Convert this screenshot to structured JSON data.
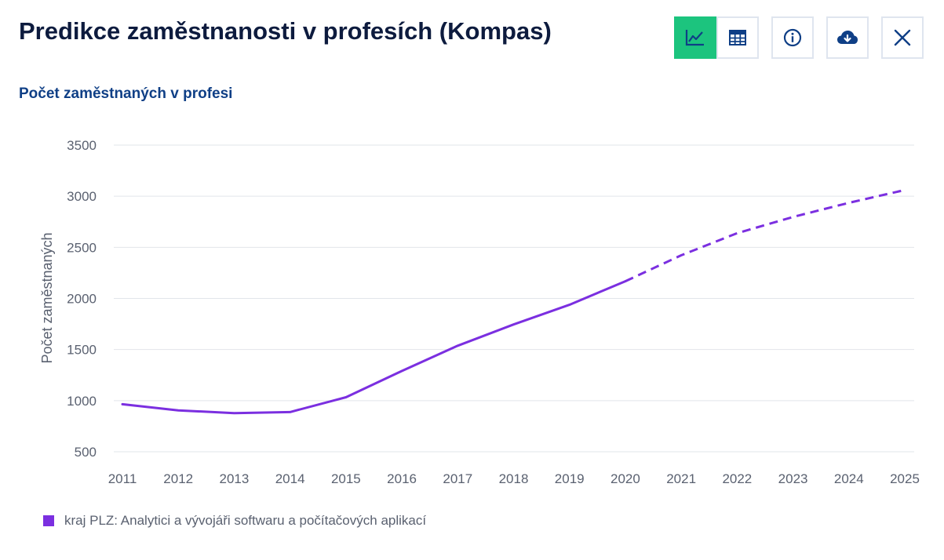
{
  "header": {
    "title": "Predikce zaměstnanosti v profesích (Kompas)",
    "icons": [
      "line-chart-icon",
      "table-icon",
      "info-icon",
      "cloud-download-icon",
      "close-icon"
    ]
  },
  "subtitle": "Počet zaměstnaných v profesi",
  "colors": {
    "series": "#7b2fe0",
    "active_button": "#1cc47e",
    "icon": "#0f3f86",
    "grid": "#e2e5ea",
    "tick_text": "#5a6170"
  },
  "chart_data": {
    "type": "line",
    "ylabel": "Počet zaměstnaných",
    "xlabel": "",
    "ylim": [
      500,
      3500
    ],
    "y_ticks": [
      500,
      1000,
      1500,
      2000,
      2500,
      3000,
      3500
    ],
    "x": [
      "2011",
      "2012",
      "2013",
      "2014",
      "2015",
      "2016",
      "2017",
      "2018",
      "2019",
      "2020",
      "2021",
      "2022",
      "2023",
      "2024",
      "2025"
    ],
    "grid": true,
    "legend_position": "bottom-left",
    "series": [
      {
        "name": "kraj PLZ: Analytici a vývojáři softwaru a počítačových aplikací",
        "values": [
          965,
          905,
          878,
          888,
          1033,
          1290,
          1537,
          1745,
          1938,
          2168,
          2422,
          2638,
          2797,
          2935,
          3060
        ],
        "line_style_by_point": [
          "solid",
          "solid",
          "solid",
          "solid",
          "solid",
          "solid",
          "solid",
          "solid",
          "solid",
          "solid",
          "dashed",
          "dashed",
          "dashed",
          "dashed",
          "dashed"
        ]
      }
    ]
  }
}
